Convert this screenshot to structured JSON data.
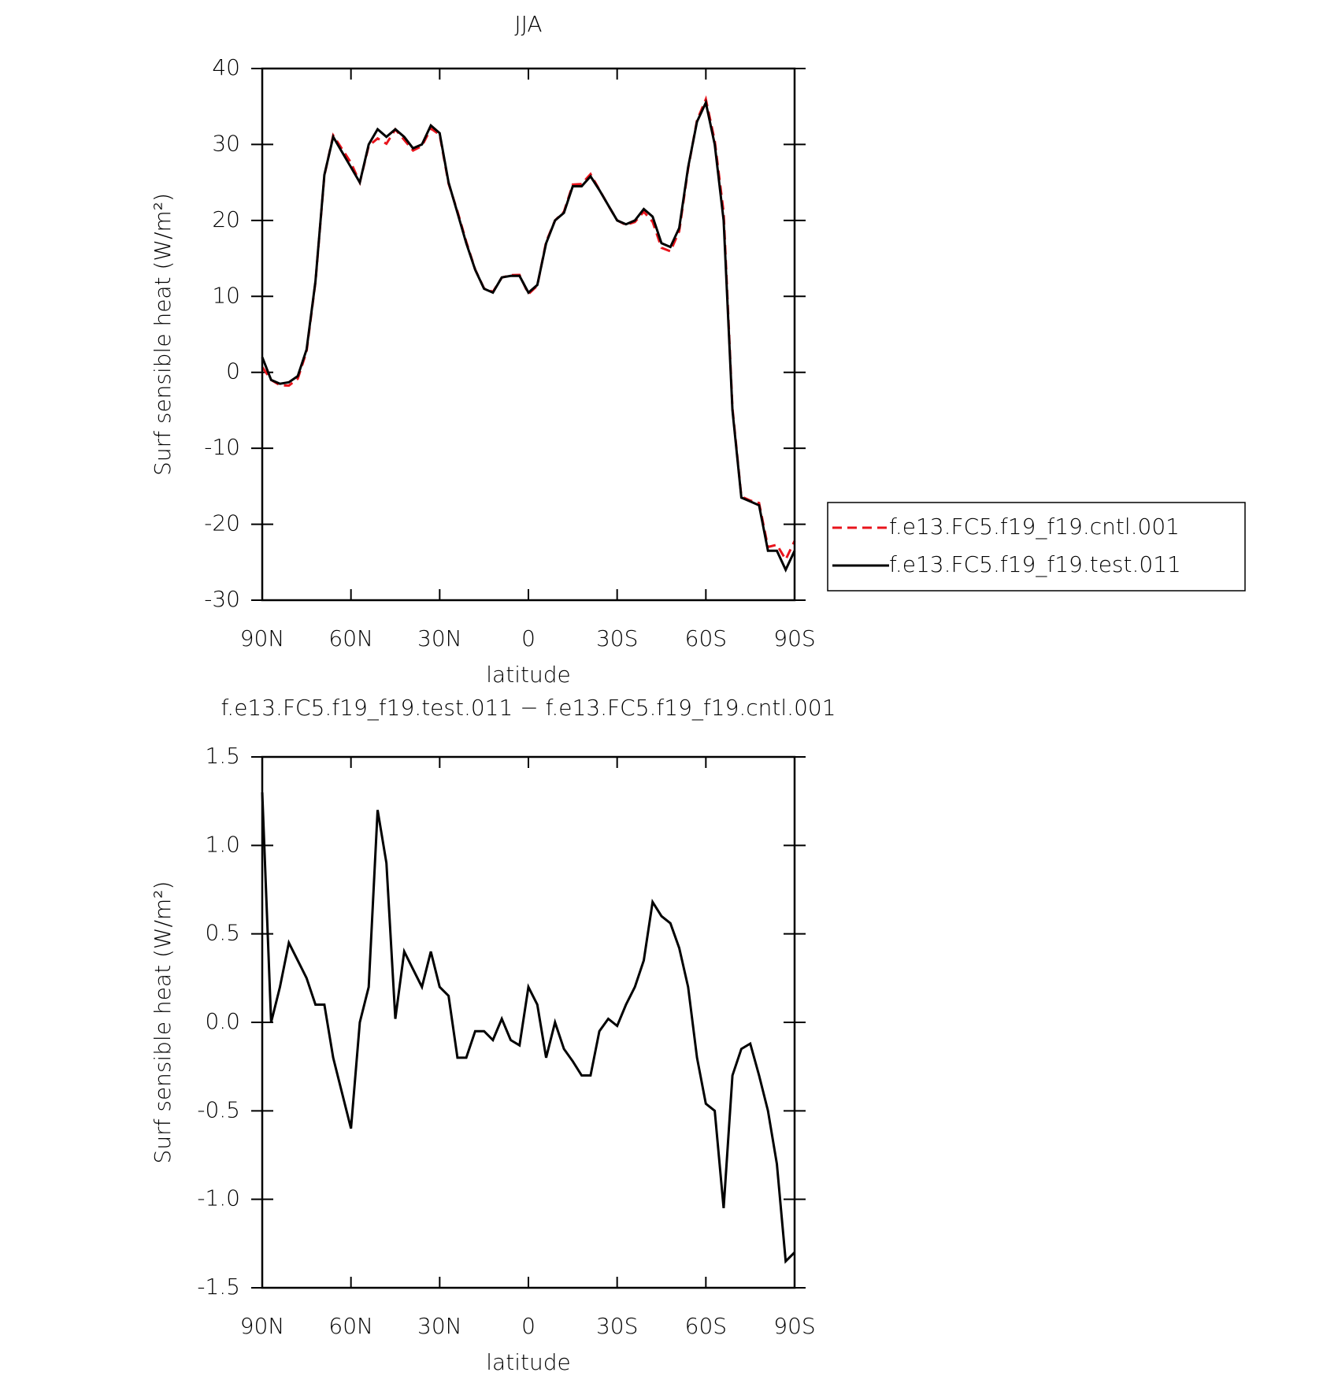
{
  "chart_data": [
    {
      "type": "line",
      "title": "JJA",
      "xlabel": "latitude",
      "ylabel": "Surf sensible heat (W/m²)",
      "x": [
        90,
        87,
        84,
        81,
        78,
        75,
        72,
        69,
        66,
        63,
        60,
        57,
        54,
        51,
        48,
        45,
        42,
        39,
        36,
        33,
        30,
        27,
        24,
        21,
        18,
        15,
        12,
        9,
        6,
        3,
        0,
        -3,
        -6,
        -9,
        -12,
        -15,
        -18,
        -21,
        -24,
        -27,
        -30,
        -33,
        -36,
        -39,
        -42,
        -45,
        -48,
        -51,
        -54,
        -57,
        -60,
        -63,
        -66,
        -69,
        -72,
        -75,
        -78,
        -81,
        -84,
        -87,
        -90
      ],
      "series": [
        {
          "name": "f.e13.FC5.f19_f19.cntl.001",
          "color": "#e8141c",
          "line_style": "dashed",
          "values": [
            0.7,
            -1,
            -1.7,
            -1.75,
            -0.85,
            2.75,
            11.9,
            25.9,
            31.2,
            29.4,
            27.6,
            25,
            29.8,
            30.8,
            30.1,
            31.98,
            30.6,
            29.2,
            29.8,
            32.1,
            31.3,
            24.85,
            21.2,
            17.2,
            13.55,
            11.05,
            10.6,
            12.48,
            12.8,
            12.83,
            10.3,
            11.4,
            17.2,
            20,
            21.15,
            24.72,
            24.8,
            26.1,
            24.05,
            21.98,
            20.02,
            19.4,
            19.8,
            21.15,
            19.82,
            16.4,
            15.94,
            18.58,
            26.8,
            33.2,
            35.96,
            30.5,
            21.05,
            -4.7,
            -16.35,
            -16.88,
            -17.2,
            -23,
            -22.7,
            -24.65,
            -22.2
          ]
        },
        {
          "name": "f.e13.FC5.f19_f19.test.011",
          "color": "#000000",
          "line_style": "solid",
          "values": [
            2,
            -1,
            -1.5,
            -1.3,
            -0.5,
            3,
            12,
            26,
            31,
            29,
            27,
            25,
            30,
            32,
            31,
            32,
            31,
            29.5,
            30,
            32.5,
            31.5,
            25,
            21,
            17,
            13.5,
            11,
            10.5,
            12.5,
            12.7,
            12.7,
            10.5,
            11.5,
            17,
            20,
            21,
            24.5,
            24.5,
            25.8,
            24,
            22,
            20,
            19.5,
            20,
            21.5,
            20.5,
            17,
            16.5,
            19,
            27,
            33,
            35.5,
            30,
            20,
            -5,
            -16.5,
            -17,
            -17.5,
            -23.5,
            -23.5,
            -26,
            -23.5
          ]
        }
      ],
      "xlim": [
        90,
        -90
      ],
      "xticks": [
        {
          "value": 90,
          "label": "90N"
        },
        {
          "value": 60,
          "label": "60N"
        },
        {
          "value": 30,
          "label": "30N"
        },
        0,
        {
          "value": -30,
          "label": "30S"
        },
        {
          "value": -60,
          "label": "60S"
        },
        {
          "value": -90,
          "label": "90S"
        }
      ],
      "ylim": [
        -30,
        40
      ],
      "yticks": [
        40,
        30,
        20,
        10,
        0,
        -10,
        -20,
        -30
      ],
      "legend": "right"
    },
    {
      "type": "line",
      "title": "f.e13.FC5.f19_f19.test.011 − f.e13.FC5.f19_f19.cntl.001",
      "xlabel": "latitude",
      "ylabel": "Surf sensible heat (W/m²)",
      "x": [
        90,
        87,
        84,
        81,
        78,
        75,
        72,
        69,
        66,
        63,
        60,
        57,
        54,
        51,
        48,
        45,
        42,
        39,
        36,
        33,
        30,
        27,
        24,
        21,
        18,
        15,
        12,
        9,
        6,
        3,
        0,
        -3,
        -6,
        -9,
        -12,
        -15,
        -18,
        -21,
        -24,
        -27,
        -30,
        -33,
        -36,
        -39,
        -42,
        -45,
        -48,
        -51,
        -54,
        -57,
        -60,
        -63,
        -66,
        -69,
        -72,
        -75,
        -78,
        -81,
        -84,
        -87,
        -90
      ],
      "values": [
        1.3,
        0,
        0.2,
        0.45,
        0.35,
        0.25,
        0.1,
        0.1,
        -0.2,
        -0.4,
        -0.6,
        0,
        0.2,
        1.2,
        0.9,
        0.02,
        0.4,
        0.3,
        0.2,
        0.4,
        0.2,
        0.15,
        -0.2,
        -0.2,
        -0.05,
        -0.05,
        -0.1,
        0.02,
        -0.1,
        -0.13,
        0.2,
        0.1,
        -0.2,
        0,
        -0.15,
        -0.22,
        -0.3,
        -0.3,
        -0.05,
        0.02,
        -0.02,
        0.1,
        0.2,
        0.35,
        0.68,
        0.6,
        0.56,
        0.42,
        0.2,
        -0.2,
        -0.46,
        -0.5,
        -1.05,
        -0.3,
        -0.15,
        -0.12,
        -0.3,
        -0.5,
        -0.8,
        -1.35,
        -1.3
      ],
      "color": "#000000",
      "xlim": [
        90,
        -90
      ],
      "xticks": [
        {
          "value": 90,
          "label": "90N"
        },
        {
          "value": 60,
          "label": "60N"
        },
        {
          "value": 30,
          "label": "30N"
        },
        0,
        {
          "value": -30,
          "label": "30S"
        },
        {
          "value": -60,
          "label": "60S"
        },
        {
          "value": -90,
          "label": "90S"
        }
      ],
      "ylim": [
        -1.5,
        1.5
      ],
      "yticks": [
        1.5,
        {
          "value": 1,
          "label": "1.0"
        },
        0.5,
        {
          "value": 0,
          "label": "0.0"
        },
        -0.5,
        {
          "value": -1,
          "label": "-1.0"
        },
        -1.5
      ]
    }
  ]
}
